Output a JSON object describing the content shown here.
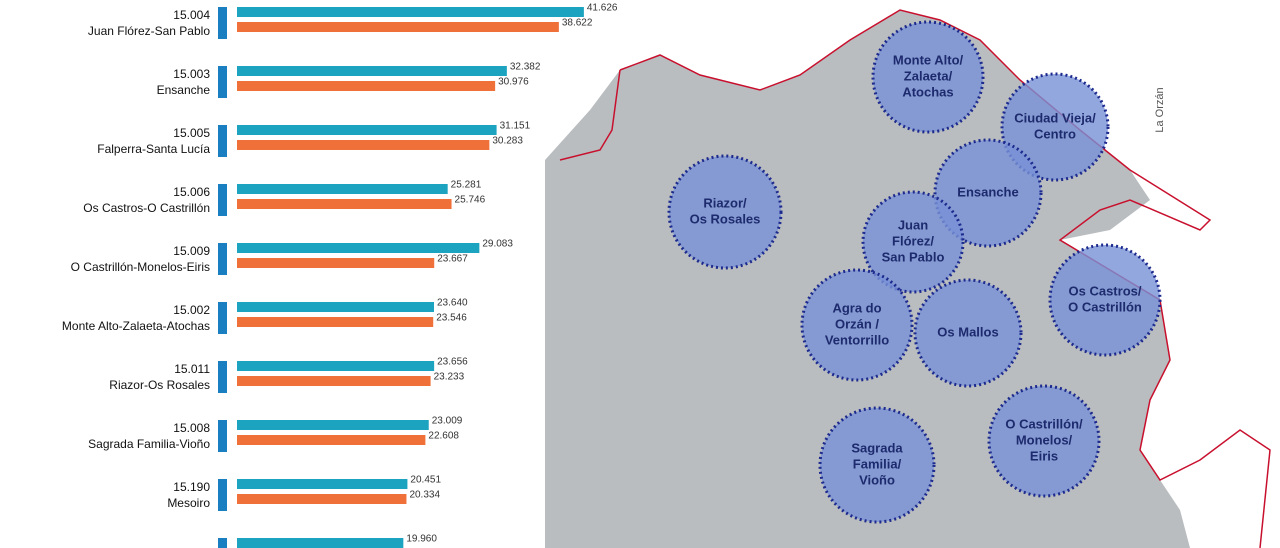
{
  "chart_data": {
    "type": "bar",
    "codes": [
      "15.004",
      "15.003",
      "15.005",
      "15.006",
      "15.009",
      "15.002",
      "15.011",
      "15.008",
      "15.190",
      null
    ],
    "categories": [
      "Juan Flórez-San Pablo",
      "Ensanche",
      "Falperra-Santa Lucía",
      "Os Castros-O Castrillón",
      "O Castrillón-Monelos-Eiris",
      "Monte Alto-Zalaeta-Atochas",
      "Riazor-Os Rosales",
      "Sagrada Familia-Vioño",
      "Mesoiro",
      null
    ],
    "series": [
      {
        "color": "#1ba3bf",
        "values": [
          41626,
          32382,
          31151,
          25281,
          29083,
          23640,
          23656,
          23009,
          20451,
          19960
        ],
        "value_labels": [
          "41.626",
          "32.382",
          "31.151",
          "25.281",
          "29.083",
          "23.640",
          "23.656",
          "23.009",
          "20.451",
          "19.960"
        ]
      },
      {
        "color": "#f0703a",
        "values": [
          38622,
          30976,
          30283,
          25746,
          23667,
          23546,
          23233,
          22608,
          20334,
          null
        ],
        "value_labels": [
          "38.622",
          "30.976",
          "30.283",
          "25.746",
          "23.667",
          "23.546",
          "23.233",
          "22.608",
          "20.334",
          null
        ]
      }
    ],
    "xlim": [
      0,
      48000
    ],
    "map": {
      "compass": "La Orzán",
      "labels": [
        [
          "Monte Alto/",
          "Zalaeta/",
          "Atochas"
        ],
        [
          "Ciudad Vieja/",
          "Centro"
        ],
        [
          "Riazor/",
          "Os Rosales"
        ],
        [
          "Ensanche"
        ],
        [
          "Juan",
          "Flórez/",
          "San Pablo"
        ],
        [
          "Os Castros/",
          "O Castrillón"
        ],
        [
          "Agra do",
          "Orzán /",
          "Ventorrillo"
        ],
        [
          "Os Mallos"
        ],
        [
          "O Castrillón/",
          "Monelos/",
          "Eiris"
        ],
        [
          "Sagrada",
          "Familia/",
          "Vioño"
        ]
      ]
    }
  }
}
